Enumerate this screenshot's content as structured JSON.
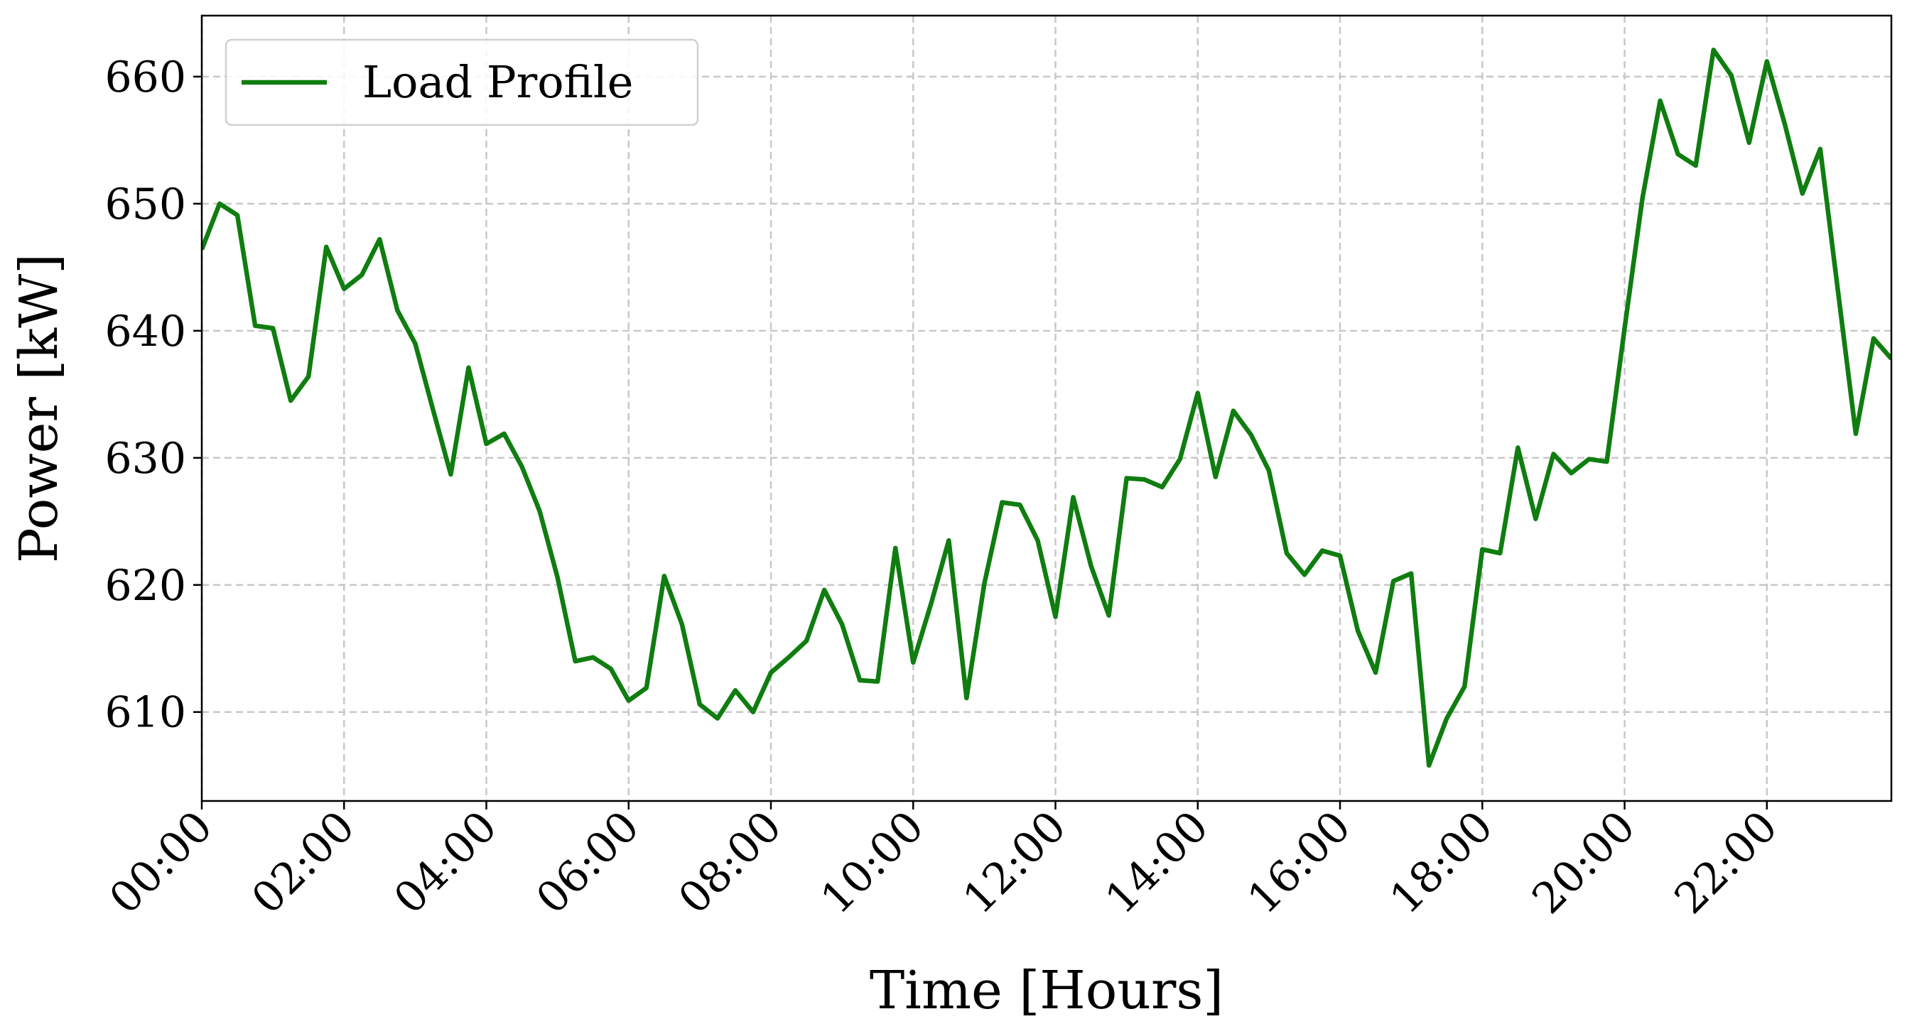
{
  "chart_data": {
    "type": "line",
    "xlabel": "Time [Hours]",
    "ylabel": "Power [kW]",
    "x": [
      0,
      0.25,
      0.5,
      0.75,
      1,
      1.25,
      1.5,
      1.75,
      2,
      2.25,
      2.5,
      2.75,
      3,
      3.25,
      3.5,
      3.75,
      4,
      4.25,
      4.5,
      4.75,
      5,
      5.25,
      5.5,
      5.75,
      6,
      6.25,
      6.5,
      6.75,
      7,
      7.25,
      7.5,
      7.75,
      8,
      8.25,
      8.5,
      8.75,
      9,
      9.25,
      9.5,
      9.75,
      10,
      10.25,
      10.5,
      10.75,
      11,
      11.25,
      11.5,
      11.75,
      12,
      12.25,
      12.5,
      12.75,
      13,
      13.25,
      13.5,
      13.75,
      14,
      14.25,
      14.5,
      14.75,
      15,
      15.25,
      15.5,
      15.75,
      16,
      16.25,
      16.5,
      16.75,
      17,
      17.25,
      17.5,
      17.75,
      18,
      18.25,
      18.5,
      18.75,
      19,
      19.25,
      19.5,
      19.75,
      20,
      20.25,
      20.5,
      20.75,
      21,
      21.25,
      21.5,
      21.75,
      22,
      22.25,
      22.5,
      22.75,
      23,
      23.25,
      23.5,
      23.75
    ],
    "series": [
      {
        "name": "Load Profile",
        "color": "#0f7d0f",
        "values": [
          646.4,
          650,
          649.1,
          640.4,
          640.2,
          634.5,
          636.4,
          646.6,
          643.3,
          644.4,
          647.2,
          641.6,
          639,
          633.8,
          628.7,
          637.1,
          631.1,
          631.9,
          629.3,
          625.8,
          620.6,
          614,
          614.3,
          613.4,
          610.9,
          611.9,
          620.7,
          616.9,
          610.6,
          609.5,
          611.7,
          610,
          613.1,
          614.3,
          615.6,
          619.6,
          616.9,
          612.5,
          612.4,
          622.9,
          613.9,
          618.5,
          623.5,
          611.1,
          620.1,
          626.5,
          626.3,
          623.5,
          617.5,
          626.9,
          621.5,
          617.6,
          628.4,
          628.3,
          627.7,
          629.9,
          635.1,
          628.5,
          633.7,
          631.8,
          629,
          622.5,
          620.8,
          622.7,
          622.3,
          616.4,
          613.1,
          620.3,
          620.9,
          605.8,
          609.5,
          612,
          622.8,
          622.5,
          630.8,
          625.2,
          630.3,
          628.8,
          629.9,
          629.7,
          640.2,
          650.4,
          658.1,
          653.9,
          653,
          662.1,
          660.1,
          654.8,
          661.2,
          656.3,
          650.8,
          654.3,
          643.1,
          631.9,
          639.4,
          637.8
        ]
      }
    ],
    "xlim": [
      0,
      23.75
    ],
    "ylim": [
      603,
      664.8
    ],
    "xticks": [
      {
        "value": 0,
        "label": "00:00"
      },
      {
        "value": 2,
        "label": "02:00"
      },
      {
        "value": 4,
        "label": "04:00"
      },
      {
        "value": 6,
        "label": "06:00"
      },
      {
        "value": 8,
        "label": "08:00"
      },
      {
        "value": 10,
        "label": "10:00"
      },
      {
        "value": 12,
        "label": "12:00"
      },
      {
        "value": 14,
        "label": "14:00"
      },
      {
        "value": 16,
        "label": "16:00"
      },
      {
        "value": 18,
        "label": "18:00"
      },
      {
        "value": 20,
        "label": "20:00"
      },
      {
        "value": 22,
        "label": "22:00"
      }
    ],
    "yticks": [
      610,
      620,
      630,
      640,
      650,
      660
    ],
    "grid": true,
    "legend": "upper left"
  }
}
